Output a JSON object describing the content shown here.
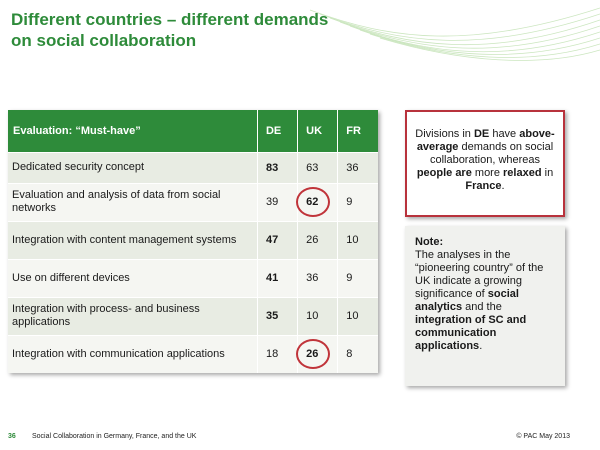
{
  "title": {
    "line1": "Different countries – different demands",
    "line2": "on social collaboration"
  },
  "table": {
    "headers": [
      "Evaluation: “Must-have”",
      "DE",
      "UK",
      "FR"
    ],
    "rows": [
      {
        "label": "Dedicated security concept",
        "de": "83",
        "uk": "63",
        "fr": "36"
      },
      {
        "label": "Evaluation and analysis of data from social networks",
        "de": "39",
        "uk": "62",
        "fr": "9"
      },
      {
        "label": "Integration with content management systems",
        "de": "47",
        "uk": "26",
        "fr": "10"
      },
      {
        "label": "Use on different devices",
        "de": "41",
        "uk": "36",
        "fr": "9"
      },
      {
        "label": "Integration with process- and business applications",
        "de": "35",
        "uk": "10",
        "fr": "10"
      },
      {
        "label": "Integration with communication applications",
        "de": "18",
        "uk": "26",
        "fr": "8"
      }
    ]
  },
  "callout": {
    "t1": "Divisions in ",
    "b1": "DE",
    "t2": " have ",
    "b2": "above-average",
    "t3": " demands on social collaboration, whereas ",
    "b3": "people are",
    "t4": " more ",
    "b4": "relaxed",
    "t5": " in ",
    "b5": "France",
    "t6": "."
  },
  "note": {
    "heading": "Note:",
    "t1": "The analyses in the “pioneering country” of the UK indicate a growing significance of ",
    "b1": "social analytics",
    "t2": " and the ",
    "b2": "integration of SC and communication applications",
    "t3": "."
  },
  "footer": {
    "page": "36",
    "text": "Social Collaboration in Germany, France, and the UK",
    "copyright": "© PAC May 2013"
  },
  "colors": {
    "accent_green": "#2e8b3a",
    "highlight_red": "#c0343a"
  }
}
